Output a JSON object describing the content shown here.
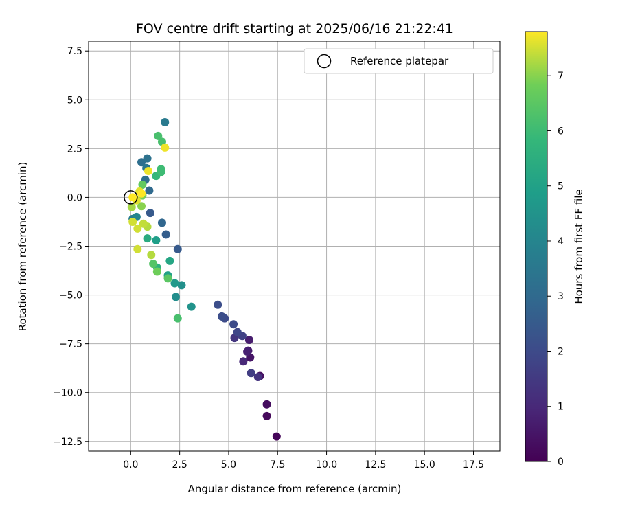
{
  "chart_data": {
    "type": "scatter",
    "title": "FOV centre drift starting at 2025/06/16 21:22:41",
    "xlabel": "Angular distance from reference (arcmin)",
    "ylabel": "Rotation from reference (arcmin)",
    "xlim": [
      -2.15,
      18.85
    ],
    "ylim": [
      -13.0,
      8.0
    ],
    "xticks": [
      0.0,
      2.5,
      5.0,
      7.5,
      10.0,
      12.5,
      15.0,
      17.5
    ],
    "xtick_labels": [
      "0.0",
      "2.5",
      "5.0",
      "7.5",
      "10.0",
      "12.5",
      "15.0",
      "17.5"
    ],
    "yticks": [
      7.5,
      5.0,
      2.5,
      0.0,
      -2.5,
      -5.0,
      -7.5,
      -10.0,
      -12.5
    ],
    "ytick_labels": [
      "7.5",
      "5.0",
      "2.5",
      "0.0",
      "−2.5",
      "−5.0",
      "−7.5",
      "−10.0",
      "−12.5"
    ],
    "grid": true,
    "legend": {
      "position": "top-right",
      "entries": [
        "Reference platepar"
      ]
    },
    "reference_point": {
      "x": 0.0,
      "y": 0.0,
      "marker": "open-circle"
    },
    "colorbar": {
      "label": "Hours from first FF file",
      "colormap": "viridis",
      "range": [
        0,
        7.8
      ],
      "ticks": [
        0,
        1,
        2,
        3,
        4,
        5,
        6,
        7
      ],
      "tick_labels": [
        "0",
        "1",
        "2",
        "3",
        "4",
        "5",
        "6",
        "7"
      ]
    },
    "series": [
      {
        "values": [
          {
            "x": 7.45,
            "y": -12.25,
            "c": 0.1
          },
          {
            "x": 6.95,
            "y": -11.2,
            "c": 0.2
          },
          {
            "x": 6.95,
            "y": -10.6,
            "c": 0.3
          },
          {
            "x": 6.6,
            "y": -9.15,
            "c": 0.4
          },
          {
            "x": 6.1,
            "y": -8.2,
            "c": 0.5
          },
          {
            "x": 6.0,
            "y": -7.85,
            "c": 0.6
          },
          {
            "x": 6.05,
            "y": -7.3,
            "c": 0.7
          },
          {
            "x": 5.95,
            "y": -7.9,
            "c": 0.8
          },
          {
            "x": 5.75,
            "y": -8.4,
            "c": 1.0
          },
          {
            "x": 6.5,
            "y": -9.2,
            "c": 1.3
          },
          {
            "x": 5.3,
            "y": -7.2,
            "c": 1.4
          },
          {
            "x": 6.15,
            "y": -9.0,
            "c": 1.6
          },
          {
            "x": 5.7,
            "y": -7.1,
            "c": 1.7
          },
          {
            "x": 5.45,
            "y": -6.9,
            "c": 1.9
          },
          {
            "x": 5.25,
            "y": -6.5,
            "c": 2.0
          },
          {
            "x": 4.8,
            "y": -6.2,
            "c": 2.0
          },
          {
            "x": 4.65,
            "y": -6.1,
            "c": 2.1
          },
          {
            "x": 4.45,
            "y": -5.5,
            "c": 2.1
          },
          {
            "x": 1.0,
            "y": -0.8,
            "c": 2.5
          },
          {
            "x": 2.4,
            "y": -2.65,
            "c": 2.5
          },
          {
            "x": 1.8,
            "y": -1.9,
            "c": 2.6
          },
          {
            "x": 1.6,
            "y": -1.3,
            "c": 2.9
          },
          {
            "x": 0.95,
            "y": 0.35,
            "c": 3.0
          },
          {
            "x": 0.75,
            "y": 0.9,
            "c": 3.2
          },
          {
            "x": 0.55,
            "y": 1.8,
            "c": 3.2
          },
          {
            "x": 0.85,
            "y": 2.0,
            "c": 3.3
          },
          {
            "x": 0.8,
            "y": 1.5,
            "c": 3.5
          },
          {
            "x": 1.75,
            "y": 3.85,
            "c": 3.6
          },
          {
            "x": 0.1,
            "y": -1.1,
            "c": 3.7
          },
          {
            "x": 0.3,
            "y": -1.0,
            "c": 4.0
          },
          {
            "x": 2.3,
            "y": -5.1,
            "c": 4.3
          },
          {
            "x": 2.6,
            "y": -4.5,
            "c": 4.4
          },
          {
            "x": 3.1,
            "y": -5.6,
            "c": 4.5
          },
          {
            "x": 2.25,
            "y": -4.4,
            "c": 4.7
          },
          {
            "x": 1.3,
            "y": -2.2,
            "c": 4.9
          },
          {
            "x": 1.9,
            "y": -4.0,
            "c": 5.0
          },
          {
            "x": 2.0,
            "y": -3.25,
            "c": 5.2
          },
          {
            "x": 0.85,
            "y": -2.1,
            "c": 5.4
          },
          {
            "x": 1.35,
            "y": -3.6,
            "c": 5.6
          },
          {
            "x": 1.3,
            "y": 1.1,
            "c": 5.8
          },
          {
            "x": 1.55,
            "y": 1.3,
            "c": 6.0
          },
          {
            "x": 1.55,
            "y": 1.45,
            "c": 6.0
          },
          {
            "x": 1.6,
            "y": 2.85,
            "c": 6.2
          },
          {
            "x": 1.4,
            "y": 3.15,
            "c": 6.2
          },
          {
            "x": 2.4,
            "y": -6.2,
            "c": 6.2
          },
          {
            "x": 1.15,
            "y": -3.4,
            "c": 6.4
          },
          {
            "x": 1.9,
            "y": -4.15,
            "c": 6.5
          },
          {
            "x": 0.6,
            "y": 0.65,
            "c": 6.6
          },
          {
            "x": 1.35,
            "y": -3.8,
            "c": 6.8
          },
          {
            "x": 0.6,
            "y": 0.1,
            "c": 6.9
          },
          {
            "x": 0.55,
            "y": -0.45,
            "c": 7.0
          },
          {
            "x": 0.05,
            "y": -0.5,
            "c": 7.2
          },
          {
            "x": 1.05,
            "y": -2.95,
            "c": 7.3
          },
          {
            "x": 0.85,
            "y": -1.5,
            "c": 7.3
          },
          {
            "x": 0.65,
            "y": -1.35,
            "c": 7.4
          },
          {
            "x": 0.35,
            "y": -1.6,
            "c": 7.5
          },
          {
            "x": 0.35,
            "y": -2.65,
            "c": 7.5
          },
          {
            "x": 0.1,
            "y": -1.25,
            "c": 7.5
          },
          {
            "x": 0.45,
            "y": 0.3,
            "c": 7.6
          },
          {
            "x": 0.3,
            "y": -0.15,
            "c": 7.6
          },
          {
            "x": 0.9,
            "y": 1.35,
            "c": 7.7
          },
          {
            "x": 1.75,
            "y": 2.55,
            "c": 7.7
          },
          {
            "x": 0.1,
            "y": 0.0,
            "c": 7.8
          },
          {
            "x": 0.55,
            "y": 0.2,
            "c": 7.8
          }
        ]
      }
    ]
  }
}
